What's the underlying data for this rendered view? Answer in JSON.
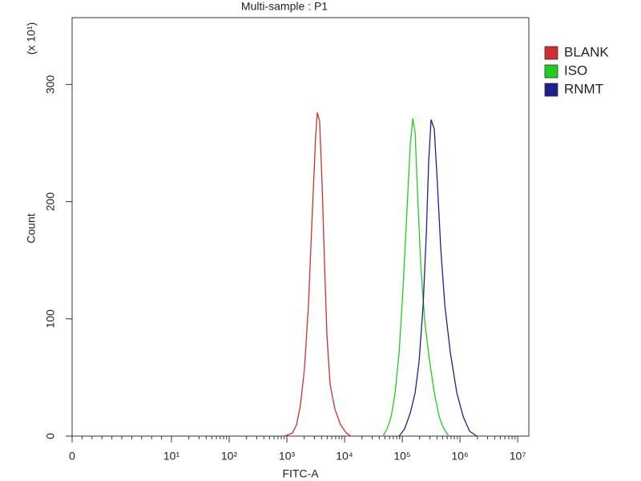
{
  "chart_data": {
    "type": "histogram-overlay",
    "title": "Multi-sample : P1",
    "x_label": "FITC-A",
    "y_label": "Count",
    "y_multiplier": "(x 10¹)",
    "x_scale": "log",
    "xlim": [
      0,
      15600000
    ],
    "xticks": [
      {
        "value": 0,
        "label": "0"
      },
      {
        "value": 10,
        "label": "10¹"
      },
      {
        "value": 100,
        "label": "10²"
      },
      {
        "value": 1000,
        "label": "10³"
      },
      {
        "value": 10000,
        "label": "10⁴"
      },
      {
        "value": 100000,
        "label": "10⁵"
      },
      {
        "value": 1000000,
        "label": "10⁶"
      },
      {
        "value": 10000000,
        "label": "10⁷"
      }
    ],
    "ylim": [
      0,
      357
    ],
    "yticks": [
      0,
      100,
      200,
      300
    ],
    "legend_position": "right",
    "series": [
      {
        "name": "BLANK",
        "color": "#d03030",
        "x": [
          910,
          1250,
          1470,
          1720,
          2020,
          2370,
          2780,
          3160,
          3370,
          3700,
          4080,
          4500,
          4950,
          5620,
          6810,
          8530,
          10700,
          12900
        ],
        "values": [
          0,
          2.7,
          9.6,
          26.7,
          57.4,
          112,
          194,
          256,
          276,
          269,
          215,
          146,
          85,
          44,
          23,
          9.6,
          2.7,
          0
        ]
      },
      {
        "name": "ISO",
        "color": "#22cc22",
        "x": [
          46400,
          54500,
          63900,
          75000,
          88000,
          103000,
          121000,
          138000,
          152000,
          167000,
          184000,
          209000,
          245000,
          297000,
          359000,
          436000,
          527000,
          640000
        ],
        "values": [
          0,
          6.2,
          16.4,
          36.9,
          71.1,
          125.8,
          194,
          249,
          271,
          259,
          208,
          146,
          98,
          64,
          37,
          16.4,
          6.2,
          0
        ]
      },
      {
        "name": "RNMT",
        "color": "#20208a",
        "x": [
          88000,
          110000,
          138000,
          167000,
          196000,
          230000,
          261000,
          287000,
          316000,
          359000,
          408000,
          464000,
          545000,
          681000,
          880000,
          1140000,
          1470000,
          1960000
        ],
        "values": [
          0,
          6.2,
          19.8,
          36.9,
          64,
          112,
          173,
          234,
          270,
          262,
          214,
          160,
          112,
          71,
          37,
          16.4,
          4.1,
          0
        ]
      }
    ]
  }
}
